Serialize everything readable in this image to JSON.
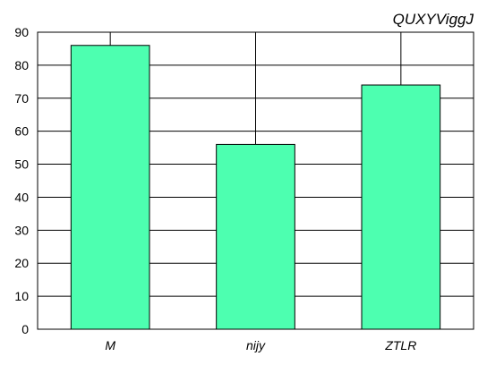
{
  "chart_data": {
    "type": "bar",
    "title": "QUXYViggJ",
    "xlabel": "",
    "ylabel": "",
    "categories": [
      "M",
      "nijy",
      "ZTLR"
    ],
    "values": [
      86,
      56,
      74
    ],
    "ylim": [
      0,
      90
    ],
    "yticks": [
      0,
      10,
      20,
      30,
      40,
      50,
      60,
      70,
      80,
      90
    ],
    "grid": true,
    "legend": "none",
    "colors": {
      "bar": "#4dffb0",
      "bar_stroke": "#000000",
      "grid": "#000000",
      "axis": "#000000"
    }
  }
}
